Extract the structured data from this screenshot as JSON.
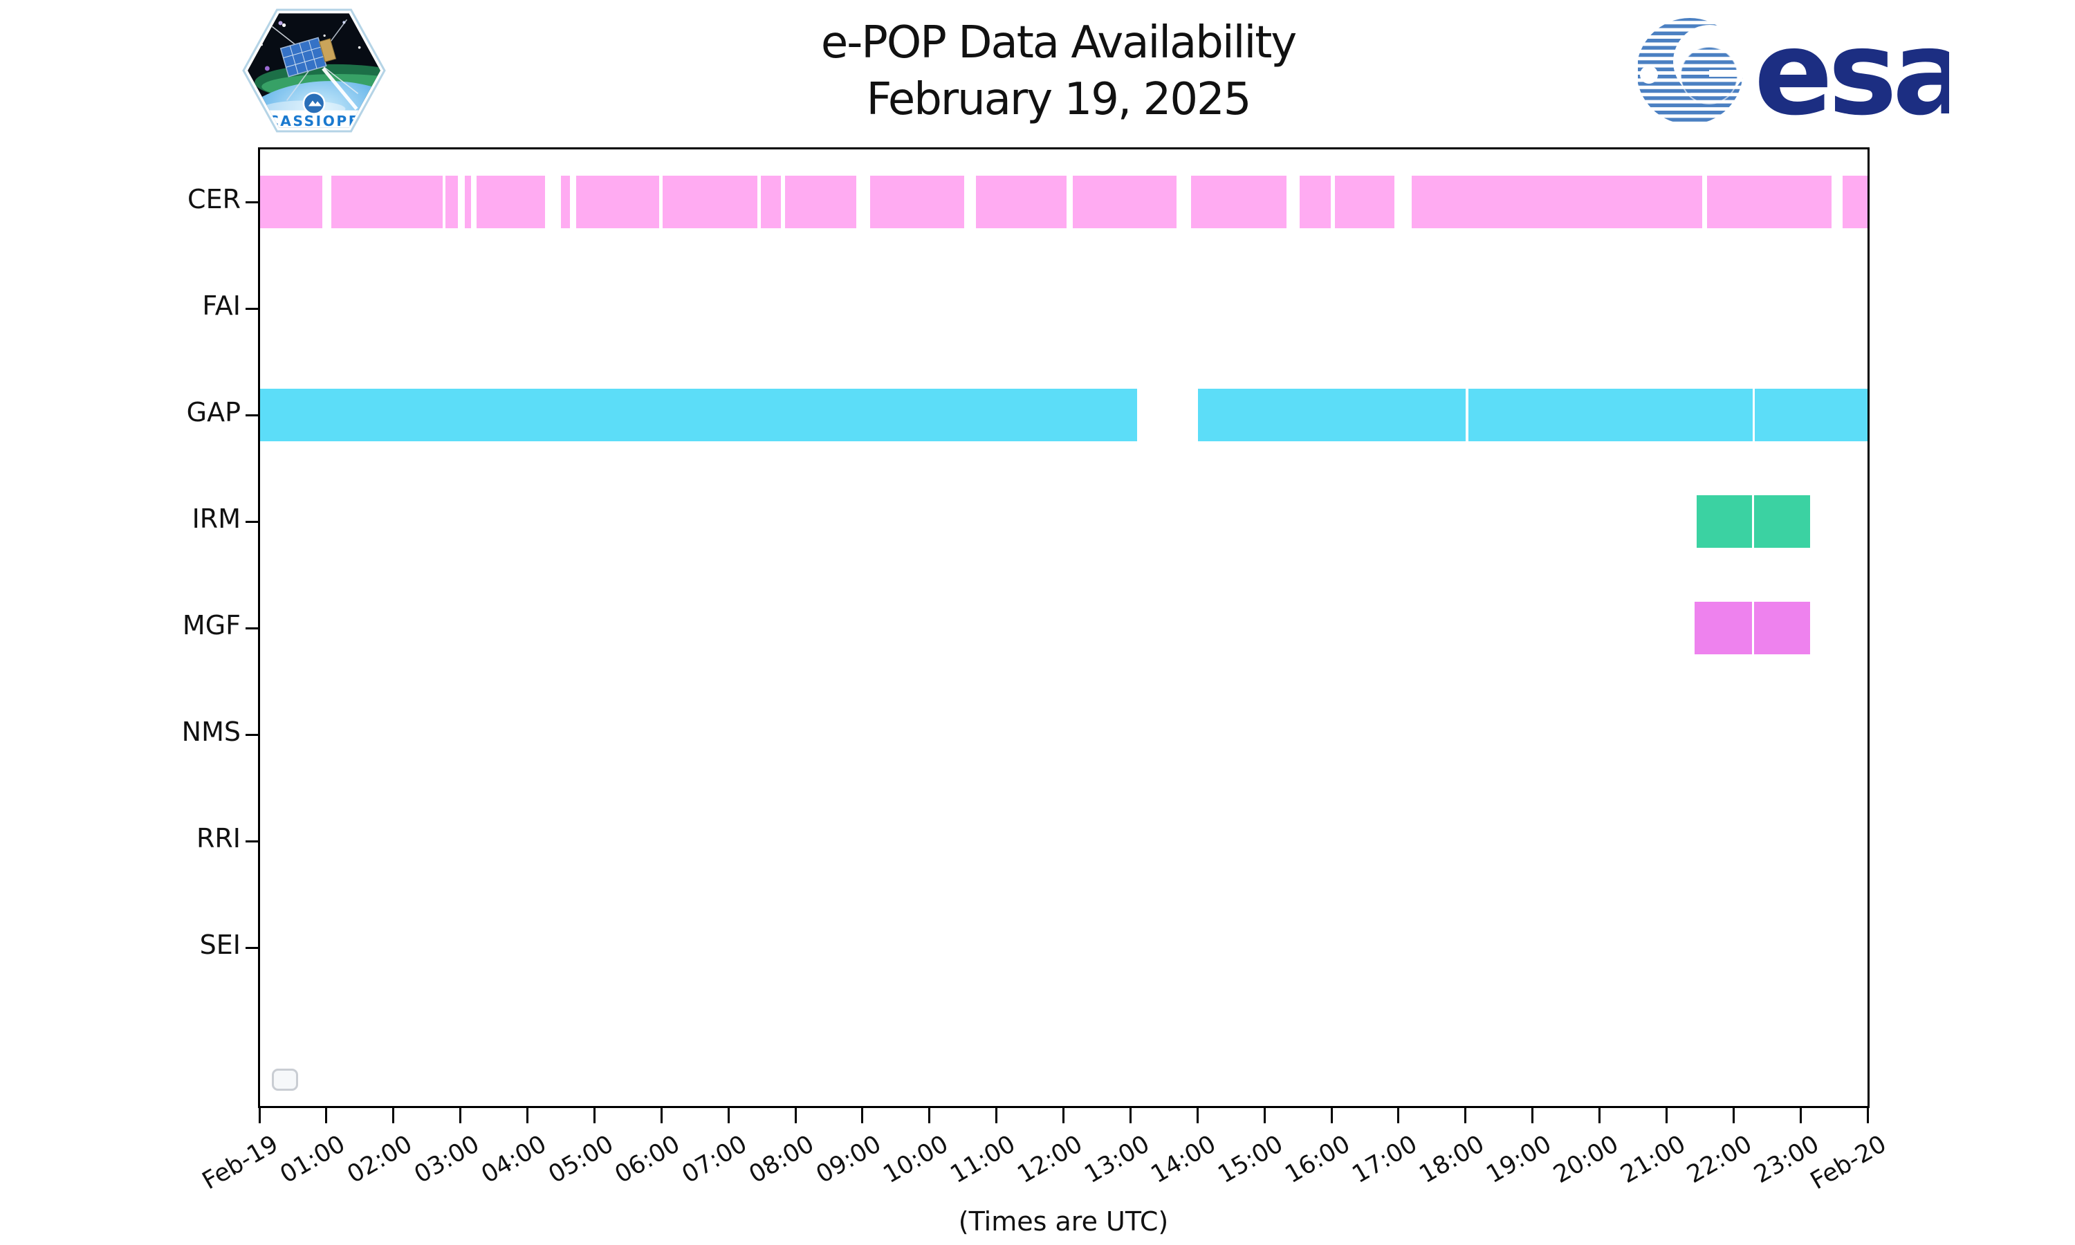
{
  "header": {
    "title_line1": "e-POP Data Availability",
    "title_line2": "February 19, 2025",
    "cassiope_label": "CASSIOPE",
    "esa_label": "esa"
  },
  "colors": {
    "cer_bar": "#FFABF2",
    "gap_bar": "#5CDDF8",
    "irm_bar": "#3BD2A2",
    "mgf_bar": "#EE82EE",
    "spine": "#000000",
    "esa_navy": "#1C2E82",
    "esa_stripe_blue": "#4B80C2",
    "cassiope_blue": "#1A79CF"
  },
  "chart_data": {
    "type": "bar",
    "subtype": "availability-timeline",
    "title": "e-POP Data Availability February 19, 2025",
    "xlabel": "(Times are UTC)",
    "x_range_hours": [
      0,
      24
    ],
    "x_tick_labels": [
      "Feb-19",
      "01:00",
      "02:00",
      "03:00",
      "04:00",
      "05:00",
      "06:00",
      "07:00",
      "08:00",
      "09:00",
      "10:00",
      "11:00",
      "12:00",
      "13:00",
      "14:00",
      "15:00",
      "16:00",
      "17:00",
      "18:00",
      "19:00",
      "20:00",
      "21:00",
      "22:00",
      "23:00",
      "Feb-20"
    ],
    "grid": false,
    "legend": "empty-stub-box-bottom-left",
    "rows": [
      {
        "label": "CER",
        "color": "#FFABF2",
        "intervals": [
          [
            0.0,
            0.94
          ],
          [
            1.07,
            2.74
          ],
          [
            2.78,
            2.96
          ],
          [
            3.07,
            3.16
          ],
          [
            3.24,
            4.26
          ],
          [
            4.5,
            4.63
          ],
          [
            4.73,
            5.97
          ],
          [
            6.02,
            7.43
          ],
          [
            7.48,
            7.78
          ],
          [
            7.84,
            8.91
          ],
          [
            9.11,
            10.52
          ],
          [
            10.69,
            12.05
          ],
          [
            12.14,
            13.69
          ],
          [
            13.9,
            15.33
          ],
          [
            15.52,
            15.99
          ],
          [
            16.05,
            16.94
          ],
          [
            17.2,
            21.53
          ],
          [
            21.6,
            23.46
          ],
          [
            23.63,
            24.0
          ]
        ]
      },
      {
        "label": "FAI",
        "color": "#FFABF2",
        "intervals": []
      },
      {
        "label": "GAP",
        "color": "#5CDDF8",
        "intervals": [
          [
            0.0,
            13.1
          ],
          [
            14.01,
            18.0
          ],
          [
            18.04,
            22.29
          ],
          [
            22.32,
            24.0
          ]
        ]
      },
      {
        "label": "IRM",
        "color": "#3BD2A2",
        "intervals": [
          [
            21.45,
            22.28
          ],
          [
            22.31,
            23.14
          ]
        ]
      },
      {
        "label": "MGF",
        "color": "#EE82EE",
        "intervals": [
          [
            21.42,
            22.28
          ],
          [
            22.31,
            23.14
          ]
        ]
      },
      {
        "label": "NMS",
        "color": "#5CDDF8",
        "intervals": []
      },
      {
        "label": "RRI",
        "color": "#EE82EE",
        "intervals": []
      },
      {
        "label": "SEI",
        "color": "#3BD2A2",
        "intervals": []
      }
    ]
  }
}
